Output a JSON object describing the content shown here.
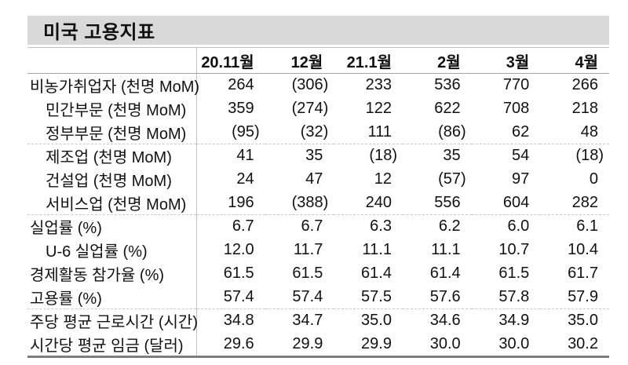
{
  "title": "미국 고용지표",
  "table": {
    "columns": [
      "20.11월",
      "12월",
      "21.1월",
      "2월",
      "3월",
      "4월"
    ],
    "rows": [
      {
        "label": "비농가취업자 (천명 MoM)",
        "values": [
          "264",
          "(306)",
          "233",
          "536",
          "770",
          "266"
        ]
      },
      {
        "label": "민간부문 (천명 MoM)",
        "values": [
          "359",
          "(274)",
          "122",
          "622",
          "708",
          "218"
        ]
      },
      {
        "label": "정부부문 (천명 MoM)",
        "values": [
          "(95)",
          "(32)",
          "111",
          "(86)",
          "62",
          "48"
        ]
      },
      {
        "label": "제조업 (천명 MoM)",
        "values": [
          "41",
          "35",
          "(18)",
          "35",
          "54",
          "(18)"
        ]
      },
      {
        "label": "건설업 (천명 MoM)",
        "values": [
          "24",
          "47",
          "12",
          "(57)",
          "97",
          "0"
        ]
      },
      {
        "label": "서비스업 (천명 MoM)",
        "values": [
          "196",
          "(388)",
          "240",
          "556",
          "604",
          "282"
        ]
      },
      {
        "label": "실업률 (%)",
        "values": [
          "6.7",
          "6.7",
          "6.3",
          "6.2",
          "6.0",
          "6.1"
        ]
      },
      {
        "label": "U-6 실업률 (%)",
        "values": [
          "12.0",
          "11.7",
          "11.1",
          "11.1",
          "10.7",
          "10.4"
        ]
      },
      {
        "label": "경제활동 참가율 (%)",
        "values": [
          "61.5",
          "61.5",
          "61.4",
          "61.4",
          "61.5",
          "61.7"
        ]
      },
      {
        "label": "고용률 (%)",
        "values": [
          "57.4",
          "57.4",
          "57.5",
          "57.6",
          "57.8",
          "57.9"
        ]
      },
      {
        "label": "주당 평균 근로시간 (시간)",
        "values": [
          "34.8",
          "34.7",
          "35.0",
          "34.6",
          "34.9",
          "35.0"
        ]
      },
      {
        "label": "시간당 평균 임금 (달러)",
        "values": [
          "29.6",
          "29.9",
          "29.9",
          "30.0",
          "30.0",
          "30.2"
        ]
      }
    ]
  },
  "colors": {
    "title_bar_bg": "#d9d9d9",
    "text": "#111111",
    "rule_light": "#c2c2c2",
    "rule_header": "#a3a3a3",
    "rule_bottom": "#7d7d7d"
  }
}
